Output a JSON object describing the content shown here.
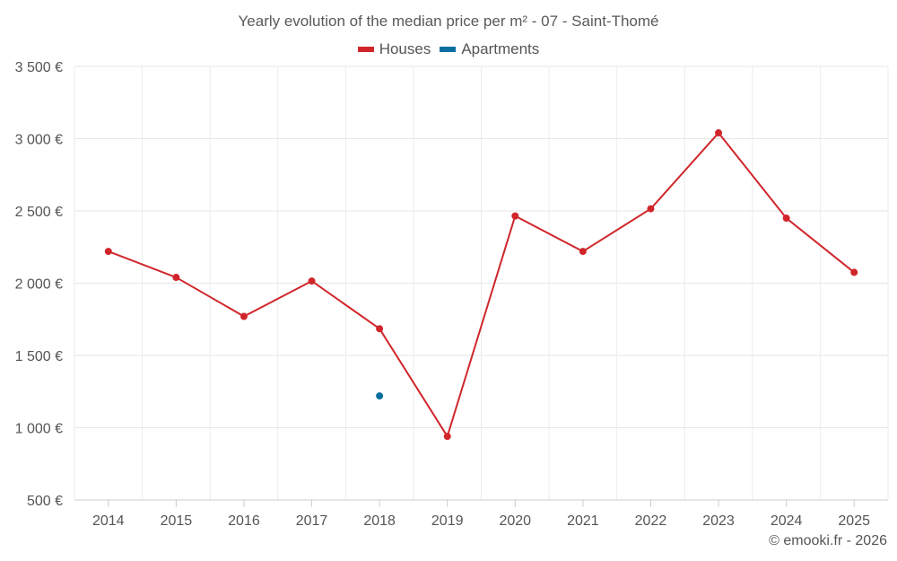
{
  "chart_data": {
    "type": "line",
    "title": "Yearly evolution of the median price per m² - 07 - Saint-Thomé",
    "categories": [
      "2014",
      "2015",
      "2016",
      "2017",
      "2018",
      "2019",
      "2020",
      "2021",
      "2022",
      "2023",
      "2024",
      "2025"
    ],
    "y_ticks": [
      "500 €",
      "1 000 €",
      "1 500 €",
      "2 000 €",
      "2 500 €",
      "3 000 €",
      "3 500 €"
    ],
    "y_tick_values": [
      500,
      1000,
      1500,
      2000,
      2500,
      3000,
      3500
    ],
    "ylim": [
      500,
      3500
    ],
    "grid": true,
    "legend_position": "top-center",
    "series": [
      {
        "name": "Houses",
        "color": "#d0262b",
        "values": [
          2220,
          2040,
          1770,
          2015,
          1685,
          940,
          2465,
          2220,
          2515,
          3040,
          2450,
          2075
        ]
      },
      {
        "name": "Apartments",
        "color": "#0b6ea0",
        "values": [
          null,
          null,
          null,
          null,
          1220,
          null,
          null,
          null,
          null,
          null,
          null,
          null
        ]
      }
    ]
  },
  "copyright": "© emooki.fr - 2026"
}
